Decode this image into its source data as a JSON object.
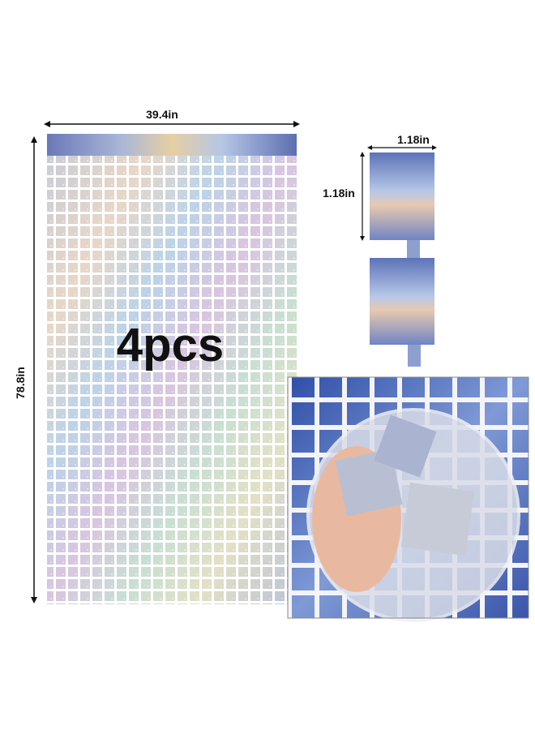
{
  "curtain": {
    "width_label": "39.4in",
    "height_label": "78.8in",
    "quantity": "4pcs"
  },
  "swatch": {
    "width_label": "1.18in",
    "height_label": "1.18in"
  }
}
